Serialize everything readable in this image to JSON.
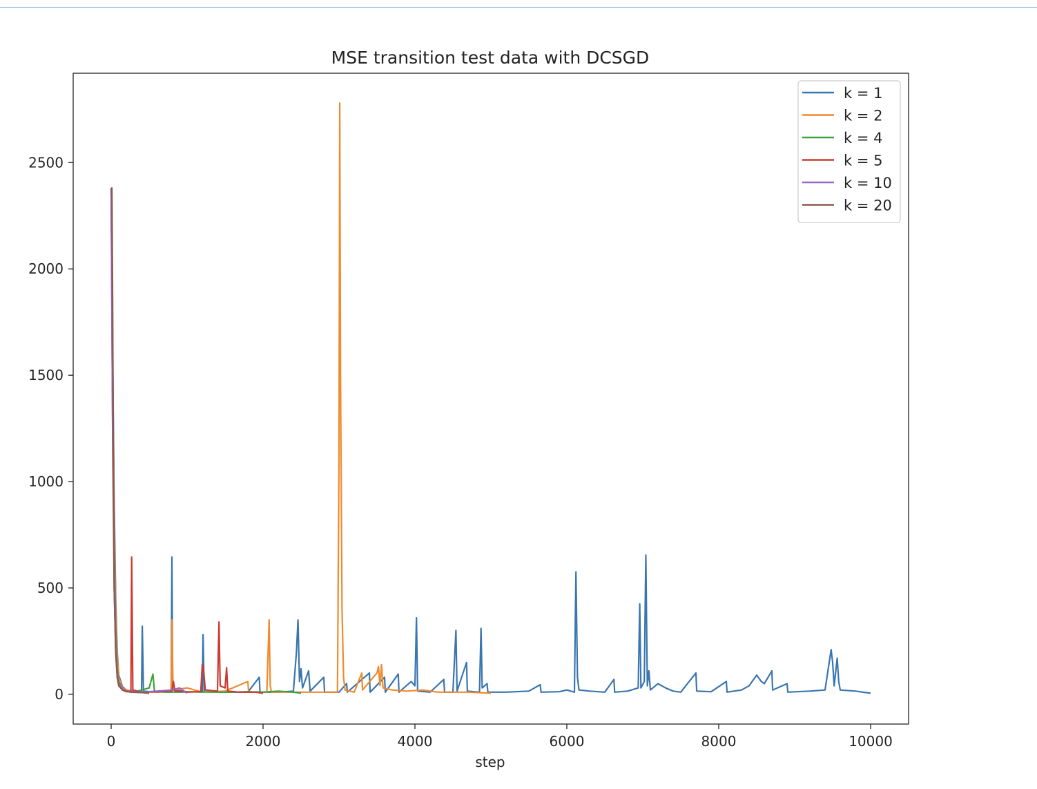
{
  "chart_data": {
    "type": "line",
    "title": "MSE transition test data with DCSGD",
    "xlabel": "step",
    "ylabel": "",
    "xlim": [
      -500,
      10500
    ],
    "ylim": [
      -140,
      2920
    ],
    "xticks": [
      0,
      2000,
      4000,
      6000,
      8000,
      10000
    ],
    "yticks": [
      0,
      500,
      1000,
      1500,
      2000,
      2500
    ],
    "xtick_labels": [
      "0",
      "2000",
      "4000",
      "6000",
      "8000",
      "10000"
    ],
    "ytick_labels": [
      "0",
      "500",
      "1000",
      "1500",
      "2000",
      "2500"
    ],
    "grid": false,
    "legend_position": "top-right",
    "series": [
      {
        "name": "k = 1",
        "color": "#3a75b0",
        "points": [
          [
            0,
            2380
          ],
          [
            20,
            1600
          ],
          [
            40,
            900
          ],
          [
            60,
            450
          ],
          [
            80,
            200
          ],
          [
            100,
            90
          ],
          [
            150,
            35
          ],
          [
            200,
            20
          ],
          [
            300,
            10
          ],
          [
            400,
            8
          ],
          [
            410,
            320
          ],
          [
            425,
            15
          ],
          [
            600,
            10
          ],
          [
            790,
            12
          ],
          [
            800,
            645
          ],
          [
            810,
            20
          ],
          [
            1000,
            12
          ],
          [
            1200,
            10
          ],
          [
            1210,
            280
          ],
          [
            1225,
            12
          ],
          [
            1500,
            10
          ],
          [
            1800,
            10
          ],
          [
            1950,
            80
          ],
          [
            1960,
            10
          ],
          [
            2200,
            10
          ],
          [
            2400,
            15
          ],
          [
            2440,
            200
          ],
          [
            2460,
            350
          ],
          [
            2480,
            60
          ],
          [
            2500,
            120
          ],
          [
            2520,
            30
          ],
          [
            2600,
            110
          ],
          [
            2620,
            15
          ],
          [
            2800,
            80
          ],
          [
            2810,
            10
          ],
          [
            3000,
            10
          ],
          [
            3100,
            50
          ],
          [
            3110,
            10
          ],
          [
            3400,
            100
          ],
          [
            3410,
            10
          ],
          [
            3600,
            80
          ],
          [
            3610,
            10
          ],
          [
            3780,
            95
          ],
          [
            3790,
            10
          ],
          [
            3950,
            60
          ],
          [
            4000,
            40
          ],
          [
            4020,
            360
          ],
          [
            4035,
            15
          ],
          [
            4200,
            10
          ],
          [
            4380,
            70
          ],
          [
            4390,
            10
          ],
          [
            4500,
            10
          ],
          [
            4540,
            300
          ],
          [
            4555,
            15
          ],
          [
            4680,
            150
          ],
          [
            4690,
            15
          ],
          [
            4850,
            10
          ],
          [
            4870,
            310
          ],
          [
            4885,
            30
          ],
          [
            4950,
            50
          ],
          [
            4960,
            10
          ],
          [
            5200,
            10
          ],
          [
            5500,
            15
          ],
          [
            5650,
            45
          ],
          [
            5660,
            10
          ],
          [
            5900,
            12
          ],
          [
            6000,
            20
          ],
          [
            6100,
            10
          ],
          [
            6120,
            575
          ],
          [
            6140,
            80
          ],
          [
            6160,
            20
          ],
          [
            6300,
            15
          ],
          [
            6500,
            10
          ],
          [
            6620,
            70
          ],
          [
            6630,
            10
          ],
          [
            6800,
            15
          ],
          [
            6940,
            30
          ],
          [
            6960,
            425
          ],
          [
            6975,
            30
          ],
          [
            7020,
            60
          ],
          [
            7040,
            655
          ],
          [
            7060,
            40
          ],
          [
            7080,
            110
          ],
          [
            7100,
            20
          ],
          [
            7200,
            50
          ],
          [
            7300,
            30
          ],
          [
            7400,
            15
          ],
          [
            7500,
            10
          ],
          [
            7700,
            100
          ],
          [
            7710,
            15
          ],
          [
            7900,
            12
          ],
          [
            8100,
            60
          ],
          [
            8110,
            10
          ],
          [
            8300,
            20
          ],
          [
            8400,
            40
          ],
          [
            8500,
            90
          ],
          [
            8560,
            60
          ],
          [
            8600,
            50
          ],
          [
            8650,
            80
          ],
          [
            8700,
            110
          ],
          [
            8710,
            20
          ],
          [
            8900,
            50
          ],
          [
            8910,
            10
          ],
          [
            9200,
            15
          ],
          [
            9400,
            20
          ],
          [
            9480,
            210
          ],
          [
            9500,
            150
          ],
          [
            9520,
            40
          ],
          [
            9560,
            170
          ],
          [
            9580,
            60
          ],
          [
            9600,
            20
          ],
          [
            9800,
            15
          ],
          [
            10000,
            5
          ]
        ]
      },
      {
        "name": "k = 2",
        "color": "#f08a2c",
        "points": [
          [
            0,
            2380
          ],
          [
            20,
            1500
          ],
          [
            40,
            800
          ],
          [
            60,
            400
          ],
          [
            80,
            180
          ],
          [
            100,
            80
          ],
          [
            150,
            30
          ],
          [
            200,
            20
          ],
          [
            400,
            10
          ],
          [
            600,
            10
          ],
          [
            790,
            12
          ],
          [
            800,
            350
          ],
          [
            815,
            20
          ],
          [
            1000,
            30
          ],
          [
            1200,
            10
          ],
          [
            1500,
            15
          ],
          [
            1800,
            60
          ],
          [
            1810,
            10
          ],
          [
            2050,
            10
          ],
          [
            2080,
            350
          ],
          [
            2095,
            40
          ],
          [
            2110,
            10
          ],
          [
            2400,
            10
          ],
          [
            2700,
            10
          ],
          [
            2980,
            10
          ],
          [
            3000,
            1100
          ],
          [
            3010,
            2780
          ],
          [
            3020,
            1500
          ],
          [
            3040,
            400
          ],
          [
            3060,
            80
          ],
          [
            3080,
            20
          ],
          [
            3200,
            10
          ],
          [
            3300,
            100
          ],
          [
            3310,
            20
          ],
          [
            3500,
            100
          ],
          [
            3520,
            130
          ],
          [
            3540,
            40
          ],
          [
            3560,
            140
          ],
          [
            3580,
            30
          ],
          [
            3700,
            20
          ],
          [
            3900,
            15
          ],
          [
            4100,
            20
          ],
          [
            4300,
            10
          ],
          [
            4500,
            10
          ],
          [
            4700,
            10
          ],
          [
            5000,
            5
          ]
        ]
      },
      {
        "name": "k = 4",
        "color": "#3ca33a",
        "points": [
          [
            0,
            2380
          ],
          [
            20,
            1500
          ],
          [
            40,
            700
          ],
          [
            60,
            300
          ],
          [
            80,
            120
          ],
          [
            100,
            60
          ],
          [
            150,
            25
          ],
          [
            200,
            15
          ],
          [
            300,
            10
          ],
          [
            500,
            30
          ],
          [
            550,
            95
          ],
          [
            570,
            15
          ],
          [
            700,
            10
          ],
          [
            900,
            10
          ],
          [
            1100,
            12
          ],
          [
            1300,
            10
          ],
          [
            1600,
            10
          ],
          [
            1800,
            12
          ],
          [
            2000,
            10
          ],
          [
            2200,
            15
          ],
          [
            2400,
            10
          ],
          [
            2500,
            5
          ]
        ]
      },
      {
        "name": "k = 5",
        "color": "#cc3a30",
        "points": [
          [
            0,
            2380
          ],
          [
            20,
            1200
          ],
          [
            40,
            500
          ],
          [
            60,
            200
          ],
          [
            80,
            80
          ],
          [
            100,
            40
          ],
          [
            150,
            20
          ],
          [
            200,
            12
          ],
          [
            260,
            12
          ],
          [
            270,
            645
          ],
          [
            285,
            20
          ],
          [
            400,
            10
          ],
          [
            600,
            12
          ],
          [
            800,
            15
          ],
          [
            820,
            60
          ],
          [
            840,
            15
          ],
          [
            1000,
            10
          ],
          [
            1180,
            12
          ],
          [
            1200,
            140
          ],
          [
            1220,
            100
          ],
          [
            1240,
            20
          ],
          [
            1400,
            15
          ],
          [
            1420,
            340
          ],
          [
            1435,
            40
          ],
          [
            1500,
            30
          ],
          [
            1520,
            125
          ],
          [
            1535,
            15
          ],
          [
            1700,
            10
          ],
          [
            1900,
            10
          ],
          [
            2000,
            5
          ]
        ]
      },
      {
        "name": "k = 10",
        "color": "#9467c8",
        "points": [
          [
            0,
            2380
          ],
          [
            20,
            1200
          ],
          [
            30,
            1120
          ],
          [
            40,
            600
          ],
          [
            60,
            250
          ],
          [
            80,
            100
          ],
          [
            100,
            50
          ],
          [
            150,
            25
          ],
          [
            200,
            15
          ],
          [
            400,
            10
          ],
          [
            600,
            15
          ],
          [
            800,
            20
          ],
          [
            900,
            30
          ],
          [
            1000,
            5
          ]
        ]
      },
      {
        "name": "k = 20",
        "color": "#8b5a4d",
        "points": [
          [
            0,
            2380
          ],
          [
            10,
            2380
          ],
          [
            20,
            1800
          ],
          [
            30,
            1000
          ],
          [
            40,
            500
          ],
          [
            60,
            200
          ],
          [
            80,
            80
          ],
          [
            100,
            40
          ],
          [
            150,
            20
          ],
          [
            250,
            10
          ],
          [
            400,
            8
          ],
          [
            500,
            5
          ]
        ]
      }
    ]
  }
}
